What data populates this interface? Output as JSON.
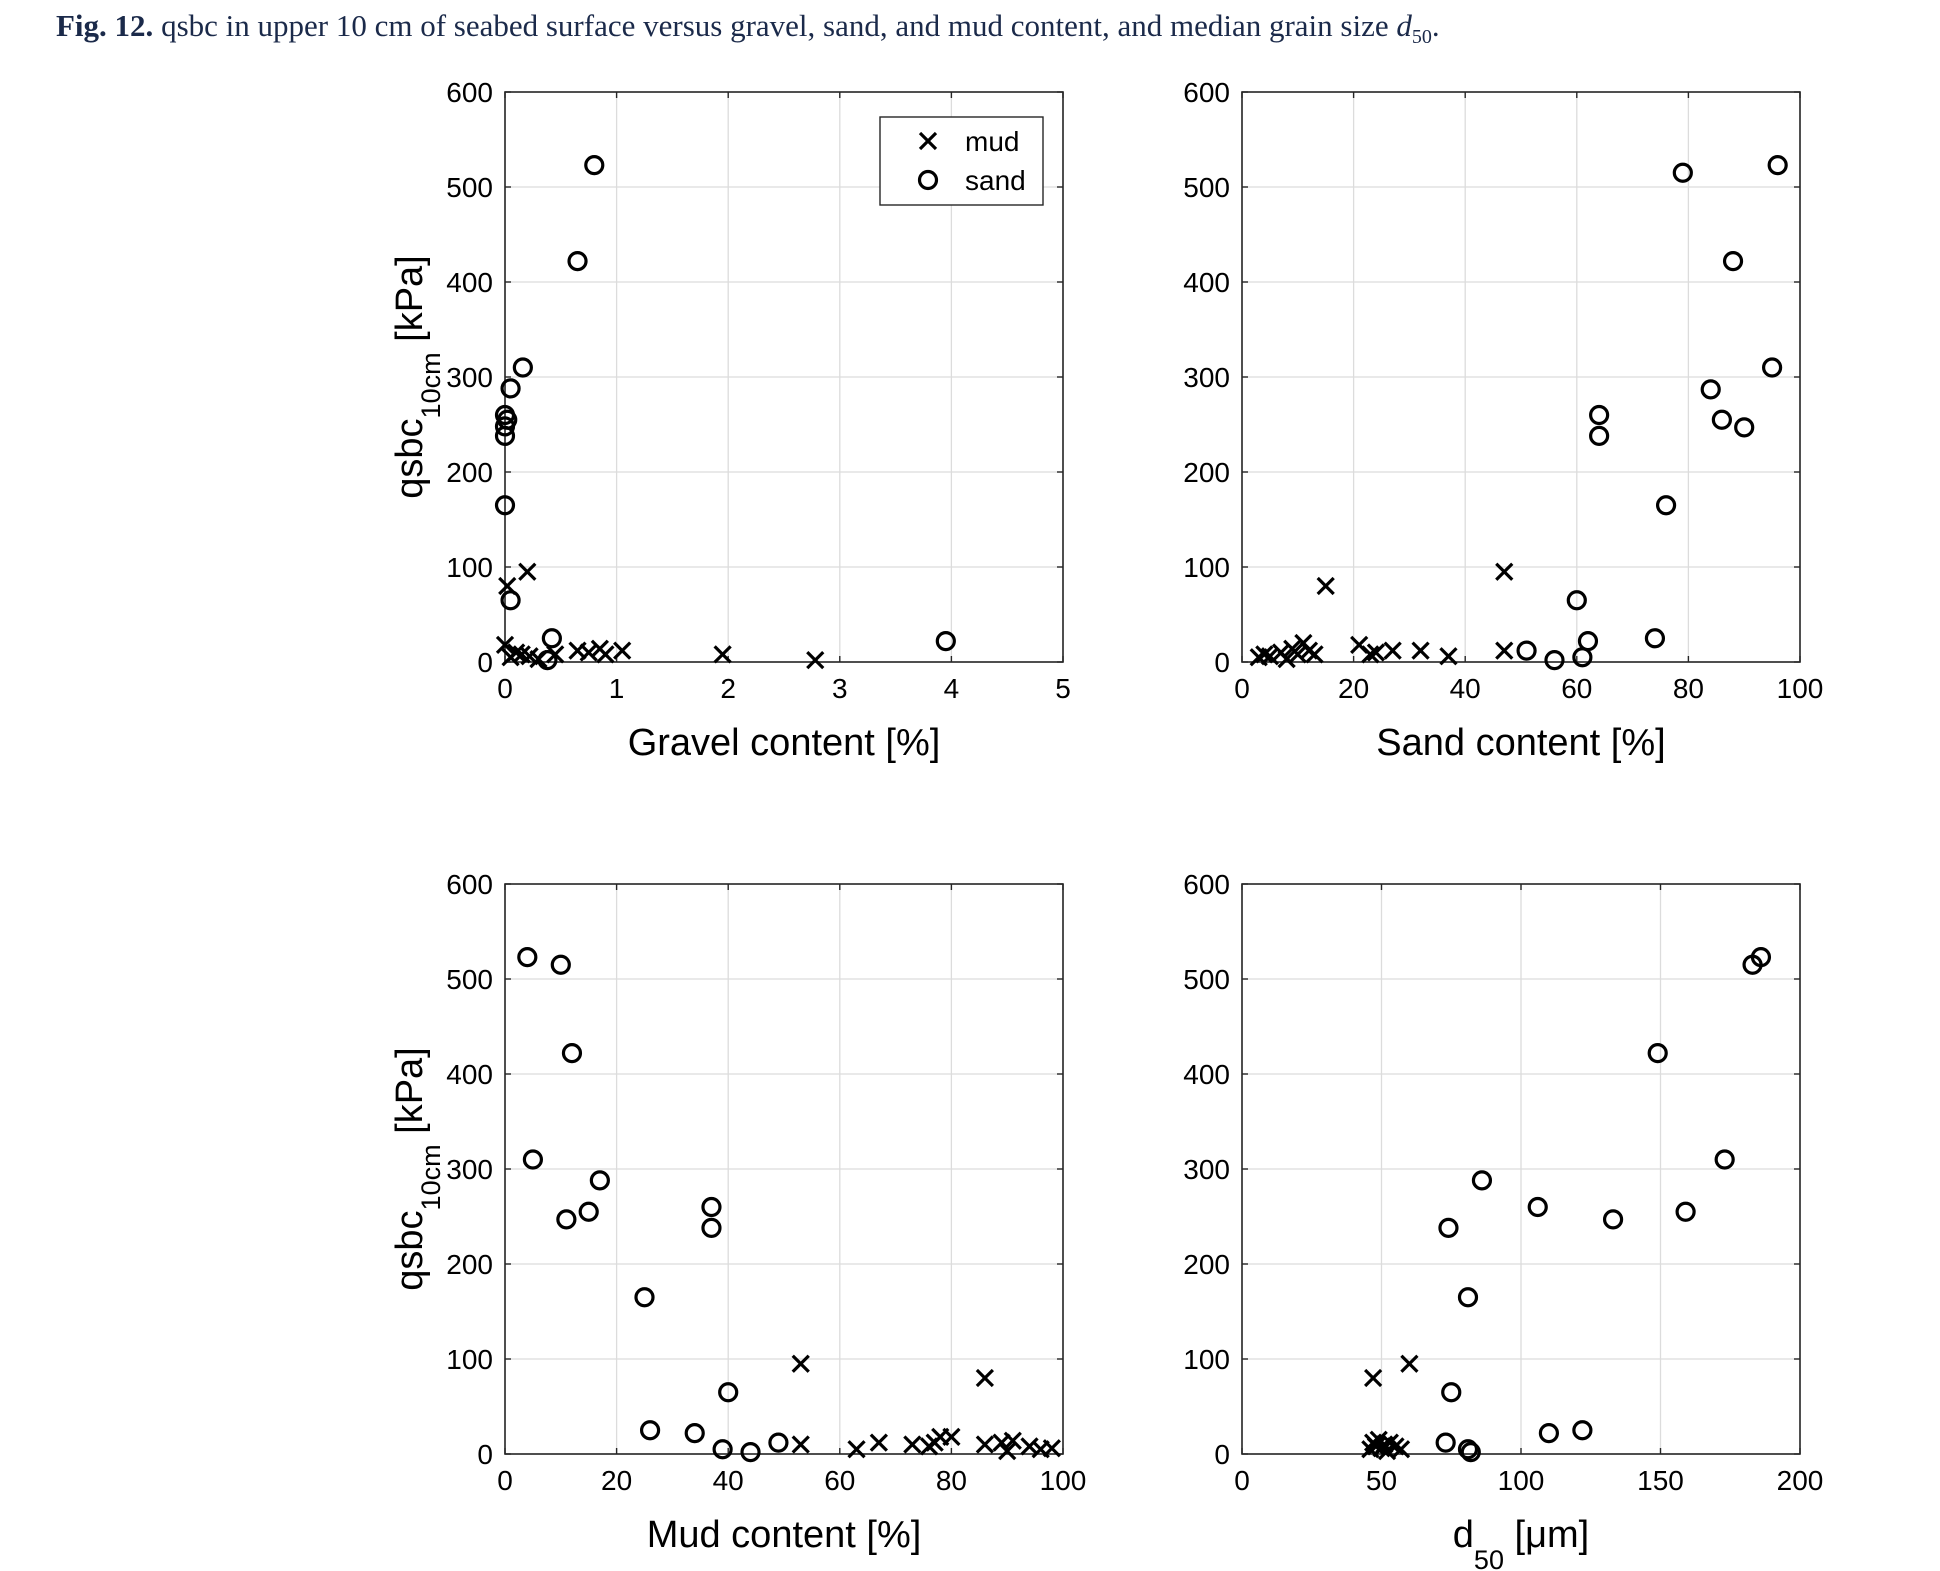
{
  "caption": {
    "label": "Fig. 12.",
    "text": "qsbc in upper 10 cm of seabed surface versus gravel, sand, and mud content, and median grain size",
    "symbol": "d",
    "symbol_sub": "50",
    "end": "."
  },
  "legend": {
    "entries": [
      "mud",
      "sand"
    ],
    "placement": "top-right of first panel"
  },
  "chart_data": [
    {
      "type": "scatter",
      "xlabel": "Gravel content [%]",
      "ylabel": {
        "main": "qsbc",
        "sub": "10cm",
        "unit": " [kPa]"
      },
      "xlim": [
        0,
        5
      ],
      "ylim": [
        0,
        600
      ],
      "xticks": [
        0,
        1,
        2,
        3,
        4,
        5
      ],
      "yticks": [
        0,
        100,
        200,
        300,
        400,
        500,
        600
      ],
      "grid": true,
      "show_legend": true,
      "series": [
        {
          "name": "mud",
          "marker": "x",
          "points": [
            [
              0,
              18
            ],
            [
              0.02,
              80
            ],
            [
              0.2,
              95
            ],
            [
              0.05,
              5
            ],
            [
              0.1,
              10
            ],
            [
              0.15,
              8
            ],
            [
              0.22,
              6
            ],
            [
              0.3,
              3
            ],
            [
              0.45,
              8
            ],
            [
              0.65,
              12
            ],
            [
              0.75,
              10
            ],
            [
              0.85,
              14
            ],
            [
              0.9,
              8
            ],
            [
              1.05,
              12
            ],
            [
              1.95,
              8
            ],
            [
              2.78,
              2
            ]
          ]
        },
        {
          "name": "sand",
          "marker": "o",
          "points": [
            [
              0,
              248
            ],
            [
              0,
              260
            ],
            [
              0,
              238
            ],
            [
              0.02,
              255
            ],
            [
              0.05,
              288
            ],
            [
              0.16,
              310
            ],
            [
              0,
              165
            ],
            [
              0.05,
              65
            ],
            [
              0.8,
              523
            ],
            [
              0.65,
              422
            ],
            [
              0.42,
              25
            ],
            [
              0.38,
              2
            ],
            [
              3.95,
              22
            ]
          ]
        }
      ]
    },
    {
      "type": "scatter",
      "xlabel": "Sand content [%]",
      "ylabel": null,
      "xlim": [
        0,
        100
      ],
      "ylim": [
        0,
        600
      ],
      "xticks": [
        0,
        20,
        40,
        60,
        80,
        100
      ],
      "yticks": [
        0,
        100,
        200,
        300,
        400,
        500,
        600
      ],
      "grid": true,
      "show_legend": false,
      "series": [
        {
          "name": "mud",
          "marker": "x",
          "points": [
            [
              3,
              5
            ],
            [
              4,
              8
            ],
            [
              5,
              6
            ],
            [
              7,
              10
            ],
            [
              8,
              3
            ],
            [
              9,
              14
            ],
            [
              10,
              8
            ],
            [
              11,
              20
            ],
            [
              12,
              12
            ],
            [
              13,
              8
            ],
            [
              15,
              80
            ],
            [
              21,
              18
            ],
            [
              23,
              8
            ],
            [
              24,
              10
            ],
            [
              27,
              12
            ],
            [
              32,
              12
            ],
            [
              37,
              6
            ],
            [
              47,
              95
            ],
            [
              47,
              12
            ]
          ]
        },
        {
          "name": "sand",
          "marker": "o",
          "points": [
            [
              51,
              12
            ],
            [
              56,
              2
            ],
            [
              60,
              65
            ],
            [
              61,
              5
            ],
            [
              62,
              22
            ],
            [
              64,
              260
            ],
            [
              64,
              238
            ],
            [
              74,
              25
            ],
            [
              76,
              165
            ],
            [
              79,
              515
            ],
            [
              84,
              287
            ],
            [
              86,
              255
            ],
            [
              88,
              422
            ],
            [
              90,
              247
            ],
            [
              95,
              310
            ],
            [
              96,
              523
            ]
          ]
        }
      ]
    },
    {
      "type": "scatter",
      "xlabel": "Mud content [%]",
      "ylabel": {
        "main": "qsbc",
        "sub": "10cm",
        "unit": " [kPa]"
      },
      "xlim": [
        0,
        100
      ],
      "ylim": [
        0,
        600
      ],
      "xticks": [
        0,
        20,
        40,
        60,
        80,
        100
      ],
      "yticks": [
        0,
        100,
        200,
        300,
        400,
        500,
        600
      ],
      "grid": true,
      "show_legend": false,
      "series": [
        {
          "name": "mud",
          "marker": "x",
          "points": [
            [
              53,
              95
            ],
            [
              53,
              10
            ],
            [
              63,
              5
            ],
            [
              67,
              12
            ],
            [
              73,
              10
            ],
            [
              76,
              8
            ],
            [
              77,
              12
            ],
            [
              78,
              18
            ],
            [
              80,
              18
            ],
            [
              86,
              80
            ],
            [
              86,
              10
            ],
            [
              89,
              12
            ],
            [
              90,
              3
            ],
            [
              91,
              14
            ],
            [
              94,
              8
            ],
            [
              96,
              5
            ],
            [
              98,
              6
            ]
          ]
        },
        {
          "name": "sand",
          "marker": "o",
          "points": [
            [
              4,
              523
            ],
            [
              5,
              310
            ],
            [
              10,
              515
            ],
            [
              11,
              247
            ],
            [
              12,
              422
            ],
            [
              15,
              255
            ],
            [
              17,
              288
            ],
            [
              25,
              165
            ],
            [
              26,
              25
            ],
            [
              34,
              22
            ],
            [
              37,
              260
            ],
            [
              37,
              238
            ],
            [
              39,
              5
            ],
            [
              40,
              65
            ],
            [
              44,
              2
            ],
            [
              49,
              12
            ]
          ]
        }
      ]
    },
    {
      "type": "scatter",
      "xlabel": {
        "main": "d",
        "sub": "50",
        "unit": " [μm]"
      },
      "ylabel": null,
      "xlim": [
        0,
        200
      ],
      "ylim": [
        0,
        600
      ],
      "xticks": [
        0,
        50,
        100,
        150,
        200
      ],
      "yticks": [
        0,
        100,
        200,
        300,
        400,
        500,
        600
      ],
      "grid": true,
      "show_legend": false,
      "series": [
        {
          "name": "mud",
          "marker": "x",
          "points": [
            [
              47,
              80
            ],
            [
              60,
              95
            ],
            [
              46,
              5
            ],
            [
              47,
              12
            ],
            [
              48,
              8
            ],
            [
              49,
              15
            ],
            [
              50,
              6
            ],
            [
              51,
              10
            ],
            [
              52,
              3
            ],
            [
              53,
              12
            ],
            [
              55,
              8
            ],
            [
              57,
              5
            ]
          ]
        },
        {
          "name": "sand",
          "marker": "o",
          "points": [
            [
              73,
              12
            ],
            [
              74,
              238
            ],
            [
              75,
              65
            ],
            [
              81,
              165
            ],
            [
              81,
              5
            ],
            [
              82,
              2
            ],
            [
              86,
              288
            ],
            [
              106,
              260
            ],
            [
              110,
              22
            ],
            [
              122,
              25
            ],
            [
              133,
              247
            ],
            [
              149,
              422
            ],
            [
              159,
              255
            ],
            [
              173,
              310
            ],
            [
              183,
              515
            ],
            [
              186,
              523
            ]
          ]
        }
      ]
    }
  ]
}
